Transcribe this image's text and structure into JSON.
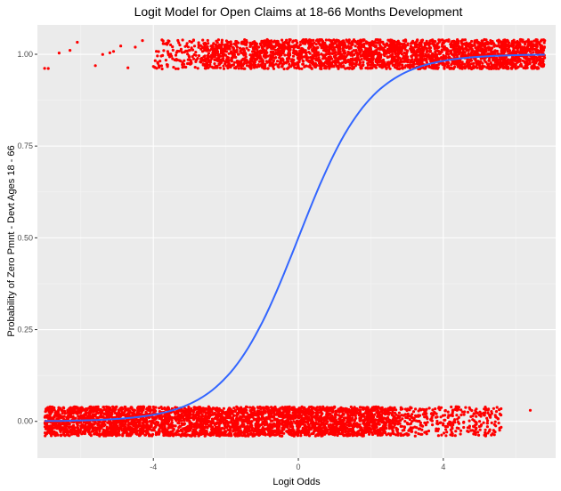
{
  "chart_data": {
    "type": "scatter",
    "title": "Logit Model for Open Claims at 18-66 Months Development",
    "xlabel": "Logit Odds",
    "ylabel": "Probability of Zero Pmnt - Devt Ages 18 - 66",
    "xlim": [
      -7.2,
      7.1
    ],
    "ylim": [
      -0.1,
      1.08
    ],
    "x_ticks": [
      -4,
      0,
      4
    ],
    "x_tick_labels": [
      "-4",
      "0",
      "4"
    ],
    "y_ticks": [
      0,
      0.25,
      0.5,
      0.75,
      1.0
    ],
    "y_tick_labels": [
      "0.00",
      "0.25",
      "0.50",
      "0.75",
      "1.00"
    ],
    "grid": true,
    "background": "#ebebeb",
    "point_color": "#ff0000",
    "curve_color": "#3366ff",
    "points": {
      "description_note": "",
      "top_band_y": 1.0,
      "bottom_band_y": 0.0,
      "jitter": 0.04,
      "top_dense_range": [
        -4.0,
        6.8
      ],
      "top_sparse_x": [
        -7.0,
        -6.9,
        -6.6,
        -6.3,
        -6.1,
        -5.6,
        -5.4,
        -5.2,
        -5.1,
        -4.9,
        -4.7,
        -4.5,
        -4.3
      ],
      "bottom_dense_range": [
        -7.0,
        2.4
      ],
      "bottom_sparse_range": [
        2.4,
        5.6
      ],
      "outlier": [
        6.4,
        0.03
      ]
    },
    "curve": {
      "type": "logistic",
      "x_range": [
        -7.0,
        6.8
      ]
    }
  }
}
